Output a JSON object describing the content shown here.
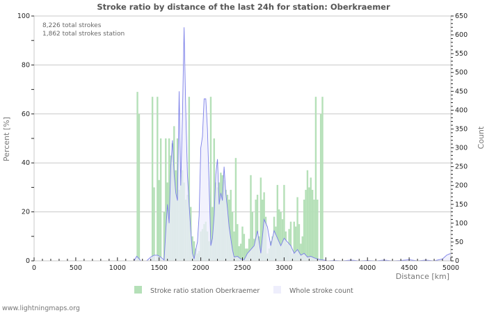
{
  "chart_data": {
    "type": "bar",
    "title": "Stroke ratio by distance of the last 24h for station: Oberkraemer",
    "info_lines": [
      "8,226 total strokes",
      "1,862 total strokes station"
    ],
    "xlabel": "Distance   [km]",
    "ylabel_left": "Percent   [%]",
    "ylabel_right": "Count",
    "xlim": [
      0,
      5000
    ],
    "ylim_left": [
      0,
      100
    ],
    "ylim_right": [
      0,
      650
    ],
    "x_ticks": [
      0,
      500,
      1000,
      1500,
      2000,
      2500,
      3000,
      3500,
      4000,
      4500,
      5000
    ],
    "y_ticks_left": [
      0,
      20,
      40,
      60,
      80,
      100
    ],
    "y_ticks_right": [
      0,
      50,
      100,
      150,
      200,
      250,
      300,
      350,
      400,
      450,
      500,
      550,
      600,
      650
    ],
    "grid": true,
    "legend": [
      "Stroke ratio station Oberkraemer",
      "Whole stroke count"
    ],
    "legend_position": "bottom",
    "series": [
      {
        "name": "Stroke ratio station Oberkraemer",
        "type": "bar",
        "axis": "left",
        "color": "#b5e0b8",
        "x": [
          1240,
          1260,
          1420,
          1440,
          1480,
          1500,
          1520,
          1560,
          1580,
          1600,
          1620,
          1640,
          1660,
          1680,
          1700,
          1720,
          1740,
          1760,
          1780,
          1800,
          1820,
          1840,
          1860,
          1880,
          1900,
          1920,
          1940,
          1960,
          1980,
          2000,
          2020,
          2040,
          2060,
          2080,
          2100,
          2120,
          2140,
          2160,
          2180,
          2200,
          2220,
          2240,
          2260,
          2280,
          2300,
          2320,
          2340,
          2360,
          2380,
          2400,
          2420,
          2440,
          2460,
          2480,
          2500,
          2520,
          2540,
          2560,
          2580,
          2600,
          2620,
          2640,
          2660,
          2680,
          2700,
          2720,
          2740,
          2760,
          2780,
          2800,
          2820,
          2840,
          2860,
          2880,
          2900,
          2920,
          2940,
          2960,
          2980,
          3000,
          3020,
          3040,
          3060,
          3080,
          3100,
          3120,
          3140,
          3160,
          3180,
          3200,
          3220,
          3240,
          3260,
          3280,
          3300,
          3320,
          3340,
          3360,
          3380,
          3400,
          3440,
          3460
        ],
        "values": [
          69,
          60,
          67,
          30,
          67,
          33,
          50,
          20,
          50,
          32,
          50,
          43,
          48,
          55,
          37,
          50,
          29,
          35,
          37,
          32,
          25,
          27,
          67,
          22,
          10,
          8,
          5,
          3,
          4,
          12,
          13,
          15,
          16,
          12,
          8,
          67,
          22,
          50,
          32,
          30,
          32,
          36,
          35,
          33,
          29,
          27,
          25,
          29,
          20,
          12,
          42,
          15,
          6,
          7,
          14,
          11,
          5,
          5,
          9,
          35,
          20,
          9,
          25,
          27,
          10,
          34,
          25,
          28,
          18,
          3,
          5,
          8,
          10,
          18,
          14,
          31,
          21,
          20,
          17,
          31,
          12,
          7,
          13,
          16,
          3,
          16,
          14,
          26,
          15,
          7,
          10,
          25,
          29,
          37,
          30,
          34,
          29,
          25,
          67,
          25,
          60,
          67
        ]
      },
      {
        "name": "Whole stroke count",
        "type": "area",
        "axis": "right",
        "color": "#7b7fe8",
        "fill": "#eeeefc",
        "x": [
          1200,
          1230,
          1250,
          1280,
          1350,
          1400,
          1440,
          1480,
          1520,
          1560,
          1580,
          1600,
          1620,
          1640,
          1660,
          1680,
          1700,
          1720,
          1740,
          1760,
          1780,
          1800,
          1820,
          1840,
          1860,
          1880,
          1900,
          1920,
          1940,
          1960,
          1980,
          2000,
          2020,
          2040,
          2060,
          2080,
          2100,
          2120,
          2140,
          2160,
          2180,
          2200,
          2220,
          2240,
          2260,
          2280,
          2300,
          2320,
          2340,
          2360,
          2380,
          2400,
          2440,
          2480,
          2520,
          2560,
          2600,
          2640,
          2680,
          2720,
          2760,
          2800,
          2840,
          2880,
          2920,
          2960,
          3000,
          3040,
          3080,
          3120,
          3160,
          3200,
          3240,
          3280,
          3320,
          3360,
          3400,
          3440,
          3480,
          3520,
          3600,
          3700,
          3800,
          3900,
          4000,
          4100,
          4200,
          4300,
          4400,
          4500,
          4600,
          4700,
          4800,
          4900,
          4950,
          5000
        ],
        "values": [
          0,
          12,
          8,
          0,
          0,
          10,
          15,
          15,
          10,
          2,
          80,
          150,
          100,
          250,
          320,
          230,
          180,
          160,
          450,
          200,
          380,
          620,
          400,
          230,
          150,
          80,
          20,
          5,
          30,
          50,
          120,
          300,
          330,
          430,
          430,
          350,
          200,
          40,
          60,
          120,
          230,
          270,
          150,
          180,
          160,
          250,
          180,
          140,
          90,
          60,
          30,
          10,
          12,
          5,
          3,
          20,
          30,
          40,
          80,
          20,
          110,
          90,
          40,
          80,
          60,
          40,
          60,
          50,
          40,
          20,
          30,
          15,
          20,
          10,
          12,
          8,
          5,
          3,
          2,
          0,
          1,
          0,
          2,
          0,
          1,
          0,
          2,
          0,
          1,
          3,
          0,
          2,
          0,
          5,
          15,
          20
        ]
      }
    ]
  },
  "footer": "www.lightningmaps.org"
}
